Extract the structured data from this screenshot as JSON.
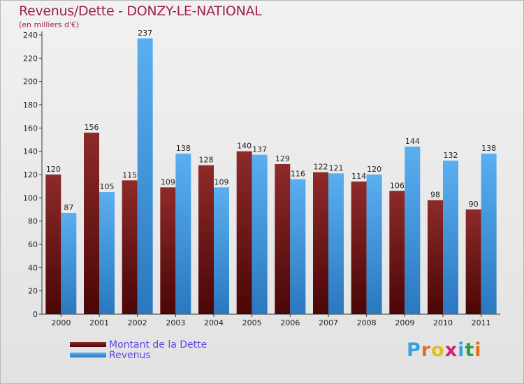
{
  "chart_data": {
    "type": "bar",
    "title": "Revenus/Dette - DONZY-LE-NATIONAL",
    "subtitle": "(en milliers d'€)",
    "categories": [
      "2000",
      "2001",
      "2002",
      "2003",
      "2004",
      "2005",
      "2006",
      "2007",
      "2008",
      "2009",
      "2010",
      "2011"
    ],
    "series": [
      {
        "name": "Montant de la Dette",
        "color": "#7a1a1a",
        "values": [
          120,
          156,
          115,
          109,
          128,
          140,
          129,
          122,
          114,
          106,
          98,
          90
        ]
      },
      {
        "name": "Revenus",
        "color": "#4a9fe0",
        "values": [
          87,
          105,
          237,
          138,
          109,
          137,
          116,
          121,
          120,
          144,
          132,
          138
        ]
      }
    ],
    "ylim": [
      0,
      240
    ],
    "yticks": [
      0,
      20,
      40,
      60,
      80,
      100,
      120,
      140,
      160,
      180,
      200,
      220,
      240
    ],
    "grid": false,
    "legend": "bottom-left"
  },
  "logo": {
    "letters": [
      "P",
      "r",
      "o",
      "x",
      "i",
      "t",
      "i"
    ],
    "colors": [
      "#3aa0e0",
      "#e07020",
      "#e0c020",
      "#d02080",
      "#3aa0e0",
      "#2aa040",
      "#e07020"
    ]
  }
}
